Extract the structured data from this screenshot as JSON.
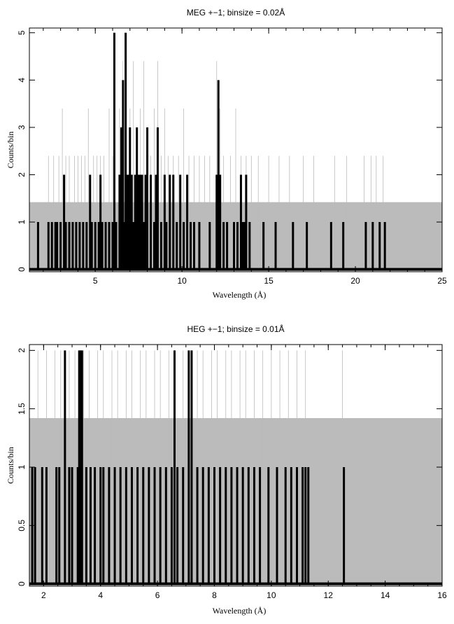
{
  "chart_data": [
    {
      "type": "line",
      "title": "MEG +−1; binsize = 0.02Å",
      "xlabel": "Wavelength (Å)",
      "ylabel": "Counts/bin",
      "xlim": [
        1.2,
        25
      ],
      "ylim": [
        -0.05,
        5.1
      ],
      "xticks": [
        5,
        10,
        15,
        20,
        25
      ],
      "xtick_labels": [
        "5",
        "10",
        "15",
        "20",
        "25"
      ],
      "yticks": [
        0,
        1,
        2,
        3,
        4,
        5
      ],
      "ytick_labels": [
        "0",
        "1",
        "2",
        "3",
        "4",
        "5"
      ],
      "background_band": {
        "name": "background",
        "color": "#bbbbbb",
        "x": [
          1.2,
          25
        ],
        "y": [
          0,
          1.42
        ]
      },
      "series": [
        {
          "name": "",
          "color": "#bbbbbb",
          "style": "thin",
          "x": [
            2.3,
            2.6,
            2.9,
            3.1,
            3.3,
            3.5,
            3.8,
            4.0,
            4.2,
            4.4,
            4.6,
            4.9,
            5.1,
            5.3,
            5.5,
            5.8,
            6.0,
            6.4,
            6.6,
            6.8,
            7.0,
            7.2,
            7.4,
            7.6,
            7.8,
            8.0,
            8.2,
            8.4,
            8.6,
            8.8,
            9.0,
            9.2,
            9.5,
            9.8,
            10.1,
            10.4,
            10.7,
            11.0,
            11.3,
            11.6,
            12.0,
            12.2,
            12.4,
            12.8,
            13.1,
            13.4,
            13.7,
            14.0,
            14.4,
            15.0,
            15.6,
            16.2,
            17.0,
            17.6,
            18.8,
            19.5,
            20.5,
            20.9,
            21.2,
            21.6
          ],
          "y": [
            2.4,
            2.4,
            2.4,
            3.4,
            2.4,
            2.4,
            2.4,
            2.4,
            2.4,
            2.4,
            3.4,
            2.4,
            2.4,
            2.4,
            2.4,
            3.4,
            2.4,
            3.4,
            4.4,
            5.0,
            3.4,
            4.4,
            2.4,
            3.4,
            4.4,
            2.4,
            2.4,
            3.4,
            4.4,
            2.4,
            3.4,
            2.4,
            2.4,
            2.4,
            3.4,
            2.4,
            2.4,
            2.4,
            2.4,
            2.4,
            4.4,
            3.4,
            2.4,
            2.4,
            3.4,
            2.4,
            2.4,
            2.4,
            2.4,
            2.4,
            2.4,
            2.4,
            2.4,
            2.4,
            2.4,
            2.4,
            2.4,
            2.4,
            2.4,
            2.4
          ]
        },
        {
          "name": "",
          "color": "#000000",
          "style": "thick",
          "x": [
            1.7,
            2.3,
            2.5,
            2.7,
            2.8,
            3.0,
            3.2,
            3.3,
            3.5,
            3.7,
            3.9,
            4.1,
            4.3,
            4.5,
            4.7,
            4.8,
            5.0,
            5.2,
            5.3,
            5.4,
            5.6,
            5.8,
            6.0,
            6.1,
            6.2,
            6.4,
            6.5,
            6.6,
            6.7,
            6.75,
            6.8,
            6.9,
            7.0,
            7.1,
            7.2,
            7.3,
            7.4,
            7.5,
            7.6,
            7.7,
            7.8,
            7.9,
            8.0,
            8.2,
            8.4,
            8.5,
            8.6,
            8.8,
            9.0,
            9.1,
            9.3,
            9.5,
            9.7,
            9.9,
            10.1,
            10.3,
            10.5,
            10.7,
            11.0,
            11.6,
            12.0,
            12.1,
            12.2,
            12.4,
            12.6,
            13.0,
            13.2,
            13.4,
            13.5,
            13.6,
            13.7,
            13.9,
            14.7,
            15.4,
            16.4,
            17.2,
            18.6,
            19.3,
            20.6,
            21.0,
            21.4,
            21.7
          ],
          "y": [
            1,
            1,
            1,
            1,
            1,
            1,
            2,
            1,
            1,
            1,
            1,
            1,
            1,
            1,
            2,
            1,
            1,
            1,
            2,
            1,
            1,
            1,
            1,
            5,
            1,
            2,
            3,
            4,
            1,
            5,
            2,
            2,
            3,
            2,
            1,
            2,
            3,
            2,
            2,
            2,
            1,
            2,
            3,
            2,
            1,
            2,
            3,
            1,
            2,
            1,
            2,
            2,
            1,
            2,
            1,
            2,
            1,
            1,
            1,
            1,
            2,
            4,
            2,
            1,
            1,
            1,
            1,
            2,
            1,
            1,
            2,
            1,
            1,
            1,
            1,
            1,
            1,
            1,
            1,
            1,
            1,
            1
          ]
        }
      ]
    },
    {
      "type": "line",
      "title": "HEG +−1; binsize = 0.01Å",
      "xlabel": "Wavelength (Å)",
      "ylabel": "Counts/bin",
      "xlim": [
        1.5,
        16
      ],
      "ylim": [
        -0.02,
        2.05
      ],
      "xticks": [
        2,
        4,
        6,
        8,
        10,
        12,
        14,
        16
      ],
      "xtick_labels": [
        "2",
        "4",
        "6",
        "8",
        "10",
        "12",
        "14",
        "16"
      ],
      "yticks": [
        0,
        0.5,
        1,
        1.5,
        2
      ],
      "ytick_labels": [
        "0",
        "0.5",
        "1",
        "1.5",
        "2"
      ],
      "background_band": {
        "name": "background",
        "color": "#bbbbbb",
        "x": [
          1.5,
          16
        ],
        "y": [
          0,
          1.42
        ]
      },
      "series": [
        {
          "name": "",
          "color": "#bbbbbb",
          "style": "thin",
          "x": [
            1.8,
            2.1,
            2.4,
            2.6,
            2.9,
            3.1,
            3.4,
            3.6,
            3.9,
            4.1,
            4.4,
            4.6,
            4.9,
            5.1,
            5.4,
            5.6,
            5.9,
            6.1,
            6.4,
            6.6,
            6.9,
            7.1,
            7.4,
            7.6,
            7.9,
            8.1,
            8.4,
            8.6,
            8.9,
            9.1,
            9.4,
            9.7,
            10.0,
            10.3,
            10.6,
            10.9,
            11.2,
            12.5
          ],
          "y": [
            2,
            2,
            2,
            2,
            2,
            2,
            2,
            2,
            2,
            2,
            2,
            2,
            2,
            2,
            2,
            2,
            2,
            2,
            2,
            2,
            2,
            2,
            2,
            2,
            2,
            2,
            2,
            2,
            2,
            2,
            2,
            2,
            2,
            2,
            2,
            2,
            2,
            2
          ]
        },
        {
          "name": "",
          "color": "#000000",
          "style": "thick",
          "x": [
            1.6,
            1.7,
            1.95,
            2.1,
            2.45,
            2.55,
            2.75,
            2.9,
            3.0,
            3.2,
            3.25,
            3.3,
            3.35,
            3.5,
            3.65,
            3.8,
            4.0,
            4.1,
            4.3,
            4.5,
            4.7,
            4.9,
            5.1,
            5.3,
            5.5,
            5.7,
            5.9,
            6.1,
            6.3,
            6.5,
            6.6,
            6.7,
            6.9,
            7.1,
            7.2,
            7.4,
            7.6,
            7.8,
            8.0,
            8.2,
            8.4,
            8.6,
            8.8,
            9.0,
            9.2,
            9.4,
            9.6,
            9.9,
            10.2,
            10.5,
            10.7,
            10.9,
            11.1,
            11.2,
            11.3,
            12.55
          ],
          "y": [
            1,
            1,
            1,
            1,
            1,
            1,
            2,
            1,
            1,
            1,
            2,
            2,
            2,
            1,
            1,
            1,
            1,
            1,
            1,
            1,
            1,
            1,
            1,
            1,
            1,
            1,
            1,
            1,
            1,
            1,
            2,
            1,
            1,
            2,
            2,
            1,
            1,
            1,
            1,
            1,
            1,
            1,
            1,
            1,
            1,
            1,
            1,
            1,
            1,
            1,
            1,
            1,
            1,
            1,
            1,
            1
          ]
        }
      ]
    }
  ]
}
